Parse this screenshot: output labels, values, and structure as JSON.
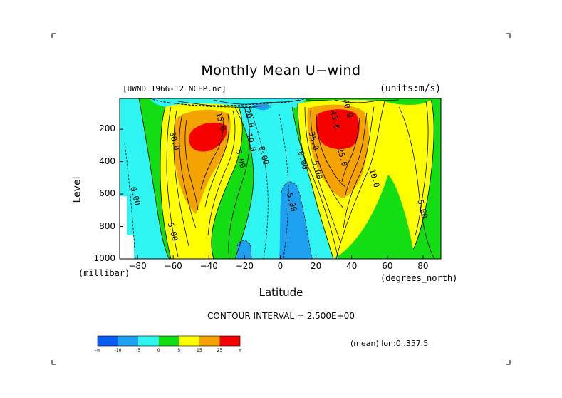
{
  "header": {
    "title": "Monthly Mean U−wind",
    "file_label": "[UWND_1966-12_NCEP.nc]",
    "units_label": "(units:m/s)"
  },
  "axes": {
    "y_title": "Level",
    "y_unit": "(millibar)",
    "x_title": "Latitude",
    "x_unit": "(degrees_north)",
    "x_ticks": [
      "−80",
      "−60",
      "−40",
      "−20",
      "0",
      "20",
      "40",
      "60",
      "80"
    ],
    "y_ticks": [
      "200",
      "400",
      "600",
      "800",
      "1000"
    ]
  },
  "footer": {
    "contour_interval": "CONTOUR INTERVAL = 2.500E+00",
    "mean_info": "(mean) lon:0..357.5"
  },
  "colorbar": {
    "colors": [
      "#0a5cf5",
      "#1ea0f0",
      "#2ff5f2",
      "#13dd13",
      "#ffff00",
      "#f5a300",
      "#f70000"
    ],
    "labels": [
      "-∞",
      "-10",
      "-5",
      "0",
      "5",
      "15",
      "25",
      "∞"
    ]
  },
  "chart_data": {
    "type": "heatmap",
    "title": "Monthly Mean U−wind",
    "xlabel": "Latitude",
    "ylabel": "Level",
    "xlim": [
      -90,
      90
    ],
    "ylim": [
      1000,
      10
    ],
    "y_reversed": true,
    "x_ticks": [
      -80,
      -60,
      -40,
      -20,
      0,
      20,
      40,
      60,
      80
    ],
    "y_ticks": [
      200,
      400,
      600,
      800,
      1000
    ],
    "contour_interval": 2.5,
    "color_levels": [
      -10,
      -5,
      0,
      5,
      15,
      25
    ],
    "jets": [
      {
        "lat": -45,
        "level": 250,
        "max": 33
      },
      {
        "lat": 30,
        "level": 200,
        "max": 45
      }
    ],
    "contour_labels": [
      {
        "text": "15.0",
        "lat": -36,
        "level": 100
      },
      {
        "text": "20.0",
        "lat": -20,
        "level": 80
      },
      {
        "text": "40.0",
        "lat": 35,
        "level": 20
      },
      {
        "text": "45.0",
        "lat": 28,
        "level": 90
      },
      {
        "text": "30.0",
        "lat": -62,
        "level": 220
      },
      {
        "text": "10.0",
        "lat": -19,
        "level": 230
      },
      {
        "text": "5.00",
        "lat": -25,
        "level": 330
      },
      {
        "text": "0.00",
        "lat": -12,
        "level": 310
      },
      {
        "text": "35.0",
        "lat": 16,
        "level": 220
      },
      {
        "text": "25.0",
        "lat": 32,
        "level": 320
      },
      {
        "text": "0.00",
        "lat": 10,
        "level": 340
      },
      {
        "text": "5.00",
        "lat": 18,
        "level": 400
      },
      {
        "text": "10.0",
        "lat": 50,
        "level": 450
      },
      {
        "text": "0.00",
        "lat": -84,
        "level": 560
      },
      {
        "text": "5.00",
        "lat": -63,
        "level": 780
      },
      {
        "text": "-5.00",
        "lat": 3,
        "level": 570
      },
      {
        "text": "5.00",
        "lat": 77,
        "level": 640
      }
    ]
  }
}
